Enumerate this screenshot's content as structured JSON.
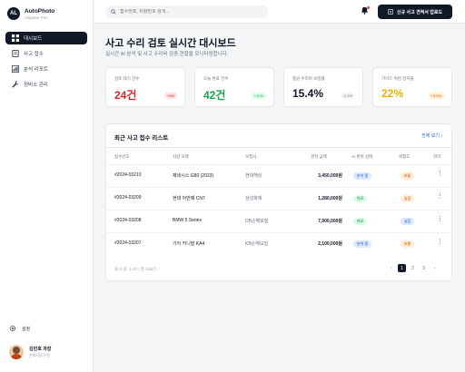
{
  "brand": {
    "logo": "AL",
    "name": "AutoPhoto",
    "subtitle": "Adjuster Pro"
  },
  "nav": [
    {
      "label": "대시보드",
      "icon": "grid-icon",
      "active": true
    },
    {
      "label": "사고 접수",
      "icon": "document-icon"
    },
    {
      "label": "분석 리포트",
      "icon": "chart-icon"
    },
    {
      "label": "정비소 관리",
      "icon": "wrench-icon"
    }
  ],
  "settings": {
    "label": "설정",
    "icon": "gear-icon"
  },
  "user": {
    "name": "김민호 과장",
    "role": "손해사정 전문"
  },
  "topbar": {
    "search_placeholder": "접수번호, 차량번호 검색...",
    "new_button": "신규 사고 견적서 업로드"
  },
  "page": {
    "title": "사고 수리 검토 실시간 대시보드",
    "subtitle": "실시간 AI 분석 및 사고 수리비 검증 현황을 모니터링합니다."
  },
  "stats": [
    {
      "label": "검토 대기 건수",
      "value": "24건",
      "badge": "+5%",
      "color": "#dc2626",
      "badge_style": "red"
    },
    {
      "label": "오늘 완료 건수",
      "value": "42건",
      "badge": "+12%",
      "color": "#16a34a",
      "badge_style": "green"
    },
    {
      "label": "평균 수리비 보정률",
      "value": "15.4%",
      "badge": "-1.2%",
      "color": "#111827",
      "badge_style": "gray"
    },
    {
      "label": "가이드 위반 감지율",
      "value": "22%",
      "badge": "+3.5%",
      "color": "#eab308",
      "badge_style": "orange"
    }
  ],
  "list": {
    "title": "최근 사고 접수 리스트",
    "view_all": "전체 보기 ›",
    "columns": [
      "접수번호",
      "차량 모델",
      "보험사",
      "견적 금액",
      "AI 판독 상태",
      "위험도",
      "관리"
    ],
    "rows": [
      {
        "id": "#2024-03210",
        "model": "제네시스 G80 (2023)",
        "insurer": "현대해상",
        "amount": "3,450,000원",
        "status": "분석 중",
        "status_style": "blue",
        "risk": "보통",
        "risk_style": "orange"
      },
      {
        "id": "#2024-03209",
        "model": "현대 아반떼 CN7",
        "insurer": "삼성화재",
        "amount": "1,280,000원",
        "status": "완료",
        "status_style": "green",
        "risk": "높음",
        "risk_style": "orange"
      },
      {
        "id": "#2024-03208",
        "model": "BMW 5 Series",
        "insurer": "DB손해보험",
        "amount": "7,900,000원",
        "status": "완료",
        "status_style": "green",
        "risk": "낮음",
        "risk_style": "blue"
      },
      {
        "id": "#2024-03207",
        "model": "기아 카니발 KA4",
        "insurer": "KB손해보험",
        "amount": "2,100,000원",
        "status": "분석 중",
        "status_style": "blue",
        "risk": "보통",
        "risk_style": "orange"
      }
    ],
    "footer": "표시 중: 1-10 / 총 128건",
    "pages": [
      "‹",
      "1",
      "2",
      "3",
      "›"
    ],
    "current_page": "1"
  }
}
